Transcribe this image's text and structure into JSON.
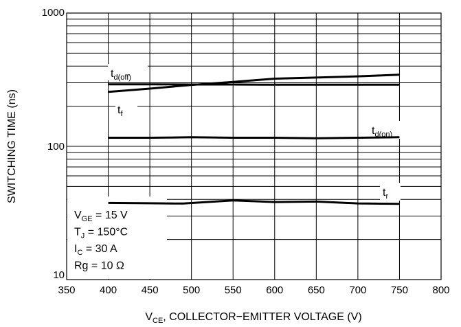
{
  "chart_data": {
    "type": "line",
    "xlabel_prefix": "V",
    "xlabel_sub": "CE",
    "xlabel_rest": ", COLLECTOR−EMITTER VOLTAGE (V)",
    "ylabel": "SWITCHING TIME (ns)",
    "xlim": [
      350,
      800
    ],
    "ylim": [
      10,
      1000
    ],
    "yscale": "log",
    "grid": true,
    "x_ticks": [
      350,
      400,
      450,
      500,
      550,
      600,
      650,
      700,
      750,
      800
    ],
    "x_tick_labels": [
      "350",
      "400",
      "450",
      "500",
      "550",
      "600",
      "650",
      "700",
      "750",
      "800"
    ],
    "y_ticks": [
      10,
      100,
      1000
    ],
    "y_tick_labels": [
      "10",
      "100",
      "1000"
    ],
    "series": [
      {
        "name_main": "t",
        "name_sub": "d(off)",
        "x": [
          400,
          450,
          500,
          550,
          600,
          650,
          700,
          750
        ],
        "y": [
          292,
          292,
          291,
          291,
          290,
          290,
          290,
          290
        ]
      },
      {
        "name_main": "t",
        "name_sub": "f",
        "x": [
          400,
          450,
          500,
          550,
          600,
          650,
          700,
          750
        ],
        "y": [
          256,
          271,
          289,
          304,
          322,
          328,
          335,
          345
        ]
      },
      {
        "name_main": "t",
        "name_sub": "d(on)",
        "x": [
          400,
          450,
          500,
          550,
          600,
          650,
          700,
          750
        ],
        "y": [
          116,
          116,
          117,
          116,
          116,
          115,
          116,
          117
        ]
      },
      {
        "name_main": "t",
        "name_sub": "r",
        "x": [
          400,
          450,
          490,
          550,
          600,
          650,
          700,
          750
        ],
        "y": [
          37.6,
          37.4,
          37.2,
          39.3,
          38.2,
          38.5,
          37.3,
          37.0
        ]
      }
    ],
    "annotations": [
      {
        "main": "V",
        "sub": "GE",
        "rest": " = 15 V"
      },
      {
        "main": "T",
        "sub": "J",
        "rest": " = 150°C"
      },
      {
        "main": "I",
        "sub": "C",
        "rest": " = 30 A"
      },
      {
        "main": "Rg = 10 Ω",
        "sub": "",
        "rest": ""
      }
    ]
  }
}
